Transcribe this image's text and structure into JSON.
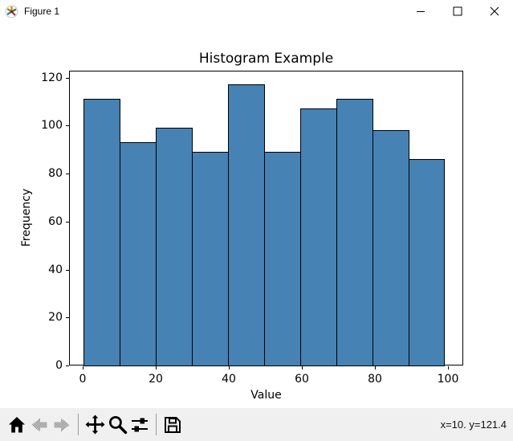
{
  "window": {
    "title": "Figure 1"
  },
  "chart_data": {
    "type": "bar",
    "subtype": "histogram",
    "title": "Histogram Example",
    "xlabel": "Value",
    "ylabel": "Frequency",
    "bins": 10,
    "bin_start": 0,
    "bin_end": 99,
    "values": [
      111,
      93,
      99,
      89,
      117,
      89,
      107,
      111,
      98,
      86
    ],
    "xticks": [
      0,
      20,
      40,
      60,
      80,
      100
    ],
    "yticks": [
      0,
      20,
      40,
      60,
      80,
      100,
      120
    ],
    "xlim": [
      -5,
      104.5
    ],
    "ylim": [
      0,
      122.85
    ],
    "grid": false,
    "legend": null,
    "bar_color": "#4682b4",
    "bar_edge_color": "#000000"
  },
  "toolbar": {
    "buttons": [
      {
        "name": "home",
        "icon": "home-icon",
        "disabled": false
      },
      {
        "name": "back",
        "icon": "back-arrow-icon",
        "disabled": true
      },
      {
        "name": "forward",
        "icon": "forward-arrow-icon",
        "disabled": true
      },
      {
        "name": "pan",
        "icon": "pan-arrows-icon",
        "disabled": false
      },
      {
        "name": "zoom",
        "icon": "zoom-magnifier-icon",
        "disabled": false
      },
      {
        "name": "configure-subplots",
        "icon": "sliders-icon",
        "disabled": false
      },
      {
        "name": "save",
        "icon": "save-floppy-icon",
        "disabled": false
      }
    ],
    "status": "x=10. y=121.4"
  },
  "colors": {
    "toolbar_bg": "#f0f0f0",
    "canvas_bg": "#ffffff",
    "titlebar_bg": "#ffffff",
    "bar_fill": "#4682b4"
  }
}
